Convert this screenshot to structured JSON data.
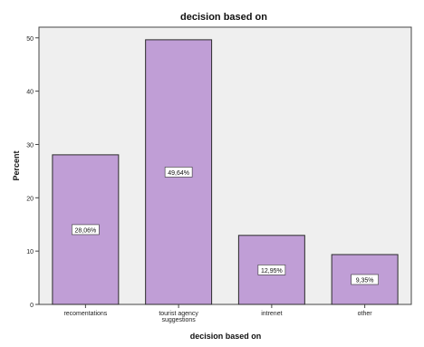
{
  "chart_data": {
    "type": "bar",
    "title": "decision based on",
    "xlabel": "decision based on",
    "ylabel": "Percent",
    "ylim": [
      0,
      52
    ],
    "yticks": [
      0,
      10,
      20,
      30,
      40,
      50
    ],
    "categories": [
      "recomentations",
      "tourist agency\nsuggestions",
      "intrenet",
      "other"
    ],
    "values": [
      28.06,
      49.64,
      12.95,
      9.35
    ],
    "data_labels": [
      "28,06%",
      "49,64%",
      "12,95%",
      "9,35%"
    ],
    "grid": false,
    "colors": {
      "bar_fill": "#c09ed6",
      "bar_stroke": "#2b2b2b",
      "plot_background": "#efefef",
      "label_box": "#ffffff"
    }
  }
}
